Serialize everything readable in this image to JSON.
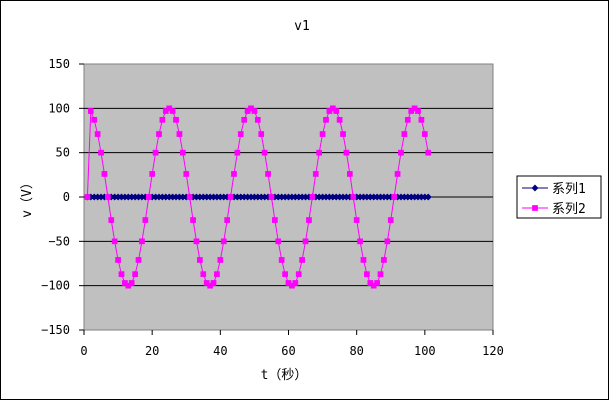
{
  "chart_data": {
    "type": "line",
    "title": "v1",
    "xlabel": "t（秒）",
    "ylabel": "v（V）",
    "xlim": [
      0,
      120
    ],
    "ylim": [
      -150,
      150
    ],
    "xticks": [
      0,
      20,
      40,
      60,
      80,
      100,
      120
    ],
    "yticks": [
      150,
      100,
      50,
      0,
      -50,
      -100,
      -150
    ],
    "x_tick_labels": [
      "0",
      "20",
      "40",
      "60",
      "80",
      "100",
      "120"
    ],
    "y_tick_labels": [
      "150",
      "100",
      "50",
      "0",
      "−50",
      "−100",
      "−150"
    ],
    "plot_background": "#c0c0c0",
    "grid": "horizontal",
    "legend_position": "right",
    "series": [
      {
        "name": "系列1",
        "color": "#000080",
        "marker": "diamond",
        "x": [
          1,
          2,
          3,
          4,
          5,
          6,
          7,
          8,
          9,
          10,
          11,
          12,
          13,
          14,
          15,
          16,
          17,
          18,
          19,
          20,
          21,
          22,
          23,
          24,
          25,
          26,
          27,
          28,
          29,
          30,
          31,
          32,
          33,
          34,
          35,
          36,
          37,
          38,
          39,
          40,
          41,
          42,
          43,
          44,
          45,
          46,
          47,
          48,
          49,
          50,
          51,
          52,
          53,
          54,
          55,
          56,
          57,
          58,
          59,
          60,
          61,
          62,
          63,
          64,
          65,
          66,
          67,
          68,
          69,
          70,
          71,
          72,
          73,
          74,
          75,
          76,
          77,
          78,
          79,
          80,
          81,
          82,
          83,
          84,
          85,
          86,
          87,
          88,
          89,
          90,
          91,
          92,
          93,
          94,
          95,
          96,
          97,
          98,
          99,
          100,
          101
        ],
        "y": [
          0,
          0,
          0,
          0,
          0,
          0,
          0,
          0,
          0,
          0,
          0,
          0,
          0,
          0,
          0,
          0,
          0,
          0,
          0,
          0,
          0,
          0,
          0,
          0,
          0,
          0,
          0,
          0,
          0,
          0,
          0,
          0,
          0,
          0,
          0,
          0,
          0,
          0,
          0,
          0,
          0,
          0,
          0,
          0,
          0,
          0,
          0,
          0,
          0,
          0,
          0,
          0,
          0,
          0,
          0,
          0,
          0,
          0,
          0,
          0,
          0,
          0,
          0,
          0,
          0,
          0,
          0,
          0,
          0,
          0,
          0,
          0,
          0,
          0,
          0,
          0,
          0,
          0,
          0,
          0,
          0,
          0,
          0,
          0,
          0,
          0,
          0,
          0,
          0,
          0,
          0,
          0,
          0,
          0,
          0,
          0,
          0,
          0,
          0,
          0,
          0
        ]
      },
      {
        "name": "系列2",
        "color": "#ff00ff",
        "marker": "square",
        "x": [
          1,
          2,
          3,
          4,
          5,
          6,
          7,
          8,
          9,
          10,
          11,
          12,
          13,
          14,
          15,
          16,
          17,
          18,
          19,
          20,
          21,
          22,
          23,
          24,
          25,
          26,
          27,
          28,
          29,
          30,
          31,
          32,
          33,
          34,
          35,
          36,
          37,
          38,
          39,
          40,
          41,
          42,
          43,
          44,
          45,
          46,
          47,
          48,
          49,
          50,
          51,
          52,
          53,
          54,
          55,
          56,
          57,
          58,
          59,
          60,
          61,
          62,
          63,
          64,
          65,
          66,
          67,
          68,
          69,
          70,
          71,
          72,
          73,
          74,
          75,
          76,
          77,
          78,
          79,
          80,
          81,
          82,
          83,
          84,
          85,
          86,
          87,
          88,
          89,
          90,
          91,
          92,
          93,
          94,
          95,
          96,
          97,
          98,
          99,
          100,
          101
        ],
        "y": [
          0,
          97,
          87,
          71,
          50,
          26,
          0,
          -26,
          -50,
          -71,
          -87,
          -97,
          -100,
          -97,
          -87,
          -71,
          -50,
          -26,
          0,
          26,
          50,
          71,
          87,
          97,
          100,
          97,
          87,
          71,
          50,
          26,
          0,
          -26,
          -50,
          -71,
          -87,
          -97,
          -100,
          -97,
          -87,
          -71,
          -50,
          -26,
          0,
          26,
          50,
          71,
          87,
          97,
          100,
          97,
          87,
          71,
          50,
          26,
          0,
          -26,
          -50,
          -71,
          -87,
          -97,
          -100,
          -97,
          -87,
          -71,
          -50,
          -26,
          0,
          26,
          50,
          71,
          87,
          97,
          100,
          97,
          87,
          71,
          50,
          26,
          0,
          -26,
          -50,
          -71,
          -87,
          -97,
          -100,
          -97,
          -87,
          -71,
          -50,
          -26,
          0,
          26,
          50,
          71,
          87,
          97,
          100,
          97,
          87,
          71,
          50
        ]
      }
    ]
  }
}
